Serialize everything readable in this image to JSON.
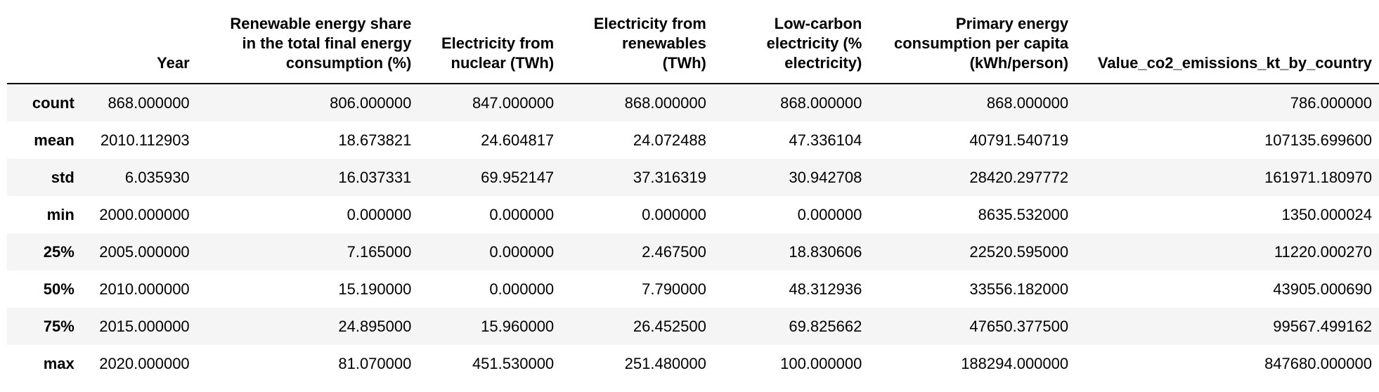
{
  "table": {
    "columns": [
      "Year",
      "Renewable energy share\nin the total final energy\nconsumption (%)",
      "Electricity from\nnuclear (TWh)",
      "Electricity from\nrenewables\n(TWh)",
      "Low-carbon\nelectricity (%\nelectricity)",
      "Primary energy\nconsumption per capita\n(kWh/person)",
      "Value_co2_emissions_kt_by_country"
    ],
    "rows": [
      {
        "index": "count",
        "values": [
          "868.000000",
          "806.000000",
          "847.000000",
          "868.000000",
          "868.000000",
          "868.000000",
          "786.000000"
        ]
      },
      {
        "index": "mean",
        "values": [
          "2010.112903",
          "18.673821",
          "24.604817",
          "24.072488",
          "47.336104",
          "40791.540719",
          "107135.699600"
        ]
      },
      {
        "index": "std",
        "values": [
          "6.035930",
          "16.037331",
          "69.952147",
          "37.316319",
          "30.942708",
          "28420.297772",
          "161971.180970"
        ]
      },
      {
        "index": "min",
        "values": [
          "2000.000000",
          "0.000000",
          "0.000000",
          "0.000000",
          "0.000000",
          "8635.532000",
          "1350.000024"
        ]
      },
      {
        "index": "25%",
        "values": [
          "2005.000000",
          "7.165000",
          "0.000000",
          "2.467500",
          "18.830606",
          "22520.595000",
          "11220.000270"
        ]
      },
      {
        "index": "50%",
        "values": [
          "2010.000000",
          "15.190000",
          "0.000000",
          "7.790000",
          "48.312936",
          "33556.182000",
          "43905.000690"
        ]
      },
      {
        "index": "75%",
        "values": [
          "2015.000000",
          "24.895000",
          "15.960000",
          "26.452500",
          "69.825662",
          "47650.377500",
          "99567.499162"
        ]
      },
      {
        "index": "max",
        "values": [
          "2020.000000",
          "81.070000",
          "451.530000",
          "251.480000",
          "100.000000",
          "188294.000000",
          "847680.000000"
        ]
      }
    ]
  }
}
